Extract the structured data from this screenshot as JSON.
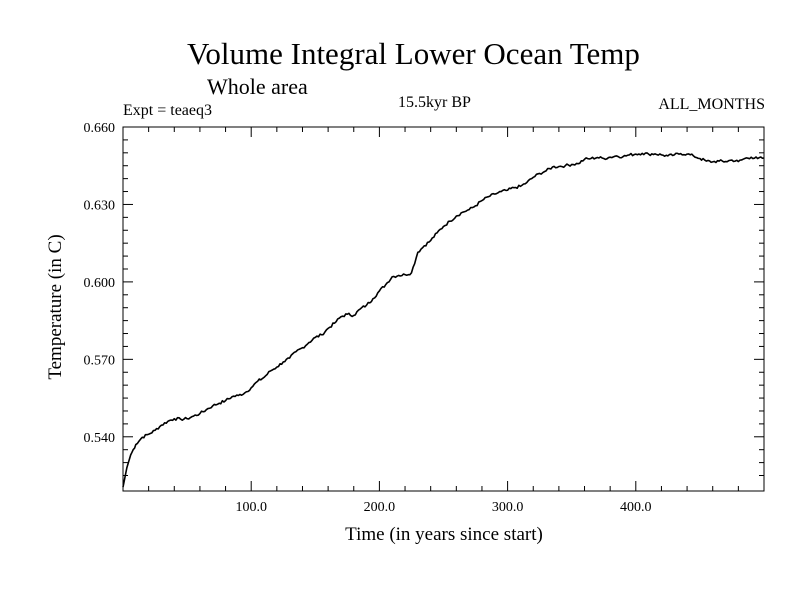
{
  "chart_data": {
    "type": "line",
    "title": "Volume Integral Lower Ocean Temp",
    "subtitle": "Whole area",
    "experiment": "Expt = teaeq3",
    "period": "15.5kyr BP",
    "months": "ALL_MONTHS",
    "xlabel": "Time (in years since start)",
    "ylabel": "Temperature (in C)",
    "xlim": [
      0,
      500
    ],
    "ylim": [
      0.519,
      0.66
    ],
    "xticks": [
      100,
      200,
      300,
      400
    ],
    "xtick_labels": [
      "100.0",
      "200.0",
      "300.0",
      "400.0"
    ],
    "yticks": [
      0.54,
      0.57,
      0.6,
      0.63,
      0.66
    ],
    "ytick_labels": [
      "0.540",
      "0.570",
      "0.600",
      "0.630",
      "0.660"
    ],
    "series": [
      {
        "name": "teaeq3",
        "x": [
          0,
          3,
          6,
          10,
          15,
          20,
          25,
          30,
          35,
          40,
          45,
          50,
          55,
          60,
          65,
          70,
          75,
          80,
          85,
          90,
          95,
          100,
          105,
          110,
          115,
          120,
          125,
          130,
          135,
          140,
          145,
          150,
          155,
          160,
          165,
          170,
          175,
          180,
          185,
          190,
          195,
          200,
          205,
          210,
          215,
          220,
          225,
          230,
          235,
          240,
          245,
          250,
          255,
          260,
          265,
          270,
          275,
          280,
          285,
          290,
          295,
          300,
          305,
          310,
          315,
          320,
          325,
          330,
          335,
          340,
          345,
          350,
          355,
          360,
          365,
          370,
          375,
          380,
          385,
          390,
          395,
          400,
          405,
          410,
          415,
          420,
          425,
          430,
          435,
          440,
          445,
          450,
          455,
          460,
          465,
          470,
          475,
          480,
          485,
          490,
          495,
          500
        ],
        "y": [
          0.5205,
          0.528,
          0.533,
          0.537,
          0.5398,
          0.541,
          0.5425,
          0.5445,
          0.546,
          0.547,
          0.5468,
          0.547,
          0.548,
          0.549,
          0.5505,
          0.552,
          0.553,
          0.554,
          0.5555,
          0.556,
          0.557,
          0.559,
          0.5615,
          0.563,
          0.5655,
          0.567,
          0.569,
          0.5705,
          0.573,
          0.5745,
          0.5765,
          0.5785,
          0.5795,
          0.582,
          0.584,
          0.5865,
          0.5875,
          0.587,
          0.5895,
          0.591,
          0.5935,
          0.5965,
          0.599,
          0.602,
          0.6025,
          0.6028,
          0.6035,
          0.6115,
          0.614,
          0.616,
          0.619,
          0.6215,
          0.6235,
          0.6255,
          0.627,
          0.628,
          0.6295,
          0.6315,
          0.633,
          0.634,
          0.635,
          0.6355,
          0.6365,
          0.637,
          0.6385,
          0.6405,
          0.642,
          0.643,
          0.6445,
          0.6447,
          0.645,
          0.6455,
          0.6458,
          0.6475,
          0.6478,
          0.6482,
          0.6478,
          0.6483,
          0.6488,
          0.6485,
          0.6492,
          0.6495,
          0.6498,
          0.6495,
          0.6496,
          0.6492,
          0.6488,
          0.6492,
          0.6497,
          0.6495,
          0.6488,
          0.6478,
          0.6468,
          0.6465,
          0.6468,
          0.6466,
          0.6472,
          0.6466,
          0.6478,
          0.6483,
          0.6478,
          0.648
        ]
      }
    ]
  }
}
